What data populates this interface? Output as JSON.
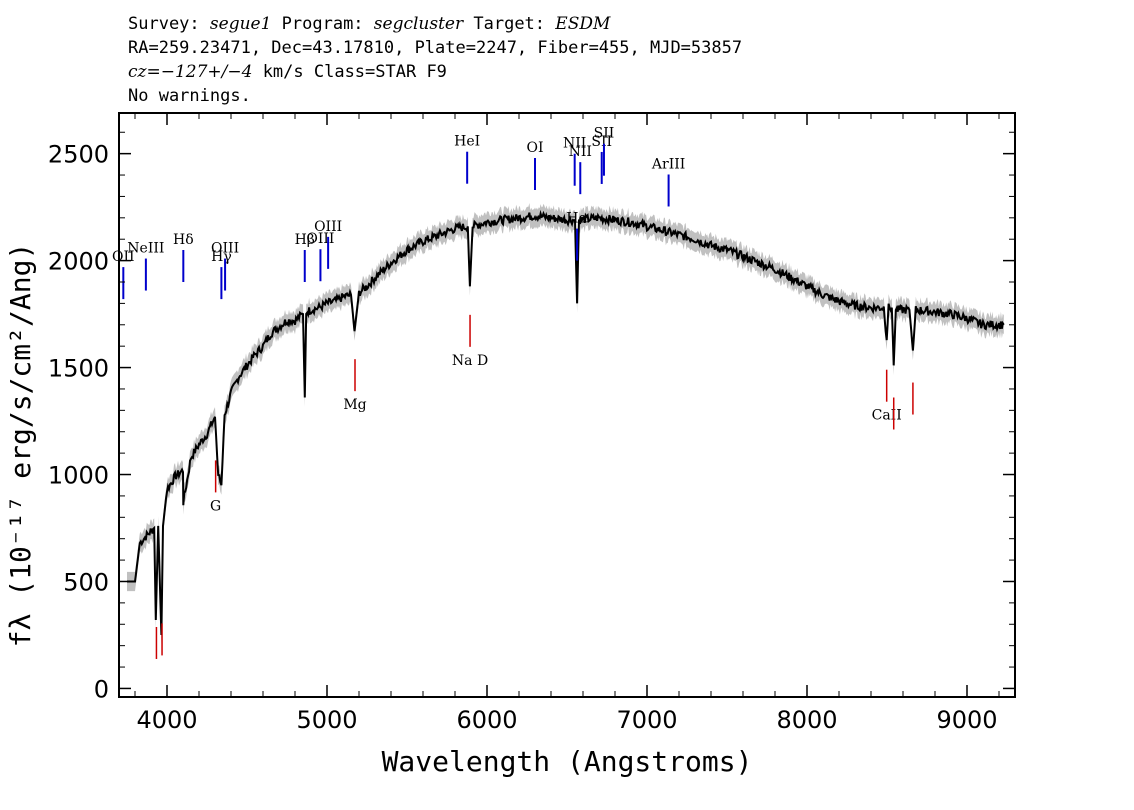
{
  "header": {
    "line1": {
      "survey_label": "Survey:",
      "survey": "segue1",
      "program_label": "Program:",
      "program": "segcluster",
      "target_label": "Target:",
      "target": "ESDM"
    },
    "line2": "RA=259.23471, Dec=43.17810, Plate=2247, Fiber=455, MJD=53857",
    "line3": {
      "cz": "cz=−127+/−4",
      "rest": " km/s Class=STAR F9"
    },
    "line4": "No warnings."
  },
  "chart_data": {
    "type": "line",
    "xlabel": "Wavelength (Angstroms)",
    "ylabel": "f_λ (10^-17 erg/s/cm²/Ang)",
    "ylabel_visible": "fλ (10⁻¹⁷ erg/s/cm²/Ang)",
    "xlim": [
      3700,
      9300
    ],
    "ylim": [
      -40,
      2690
    ],
    "x_ticks": [
      4000,
      5000,
      6000,
      7000,
      8000,
      9000
    ],
    "y_ticks": [
      0,
      500,
      1000,
      1500,
      2000,
      2500
    ],
    "grid": false,
    "series": [
      {
        "points": [
          [
            3750,
            500
          ],
          [
            3800,
            500
          ],
          [
            3830,
            680
          ],
          [
            3880,
            720
          ],
          [
            3920,
            750
          ],
          [
            3930,
            320
          ],
          [
            3945,
            760
          ],
          [
            3965,
            250
          ],
          [
            3975,
            760
          ],
          [
            4000,
            930
          ],
          [
            4050,
            990
          ],
          [
            4100,
            1020
          ],
          [
            4102,
            870
          ],
          [
            4150,
            1080
          ],
          [
            4200,
            1140
          ],
          [
            4250,
            1190
          ],
          [
            4300,
            1270
          ],
          [
            4320,
            1000
          ],
          [
            4340,
            950
          ],
          [
            4360,
            1280
          ],
          [
            4400,
            1380
          ],
          [
            4450,
            1460
          ],
          [
            4500,
            1510
          ],
          [
            4550,
            1560
          ],
          [
            4600,
            1600
          ],
          [
            4650,
            1660
          ],
          [
            4700,
            1690
          ],
          [
            4750,
            1720
          ],
          [
            4800,
            1720
          ],
          [
            4850,
            1750
          ],
          [
            4861,
            1360
          ],
          [
            4870,
            1760
          ],
          [
            4900,
            1770
          ],
          [
            4950,
            1780
          ],
          [
            5000,
            1800
          ],
          [
            5050,
            1810
          ],
          [
            5100,
            1830
          ],
          [
            5150,
            1840
          ],
          [
            5172,
            1670
          ],
          [
            5200,
            1850
          ],
          [
            5250,
            1880
          ],
          [
            5300,
            1920
          ],
          [
            5400,
            1990
          ],
          [
            5500,
            2050
          ],
          [
            5600,
            2090
          ],
          [
            5700,
            2120
          ],
          [
            5800,
            2150
          ],
          [
            5880,
            2160
          ],
          [
            5893,
            1880
          ],
          [
            5910,
            2160
          ],
          [
            6000,
            2180
          ],
          [
            6100,
            2190
          ],
          [
            6200,
            2200
          ],
          [
            6300,
            2210
          ],
          [
            6400,
            2200
          ],
          [
            6500,
            2190
          ],
          [
            6550,
            2190
          ],
          [
            6563,
            1800
          ],
          [
            6575,
            2190
          ],
          [
            6700,
            2200
          ],
          [
            6800,
            2190
          ],
          [
            6900,
            2180
          ],
          [
            7000,
            2160
          ],
          [
            7100,
            2140
          ],
          [
            7200,
            2120
          ],
          [
            7300,
            2100
          ],
          [
            7400,
            2070
          ],
          [
            7500,
            2050
          ],
          [
            7600,
            2020
          ],
          [
            7700,
            1990
          ],
          [
            7800,
            1960
          ],
          [
            7900,
            1920
          ],
          [
            8000,
            1880
          ],
          [
            8100,
            1840
          ],
          [
            8200,
            1810
          ],
          [
            8300,
            1790
          ],
          [
            8400,
            1780
          ],
          [
            8480,
            1780
          ],
          [
            8498,
            1640
          ],
          [
            8510,
            1780
          ],
          [
            8530,
            1780
          ],
          [
            8542,
            1510
          ],
          [
            8555,
            1770
          ],
          [
            8640,
            1770
          ],
          [
            8662,
            1580
          ],
          [
            8680,
            1770
          ],
          [
            8800,
            1760
          ],
          [
            8900,
            1750
          ],
          [
            9000,
            1730
          ],
          [
            9100,
            1700
          ],
          [
            9200,
            1700
          ],
          [
            9230,
            1700
          ]
        ]
      }
    ],
    "emission_lines": [
      {
        "label": "OII",
        "x": 3727
      },
      {
        "label": "NeIII",
        "x": 3868
      },
      {
        "label": "Hδ",
        "x": 4102
      },
      {
        "label": "Hγ",
        "x": 4340
      },
      {
        "label": "OIII",
        "x": 4363
      },
      {
        "label": "Hβ",
        "x": 4861
      },
      {
        "label": "OIII",
        "x": 4959
      },
      {
        "label": "OIII",
        "x": 5007
      },
      {
        "label": "HeI",
        "x": 5876
      },
      {
        "label": "OI",
        "x": 6300
      },
      {
        "label": "NII",
        "x": 6548
      },
      {
        "label": "Hα",
        "x": 6563
      },
      {
        "label": "NII",
        "x": 6583
      },
      {
        "label": "SII",
        "x": 6717
      },
      {
        "label": "SII",
        "x": 6731
      },
      {
        "label": "ArIII",
        "x": 7135
      }
    ],
    "absorption_lines": [
      {
        "label": "",
        "x": 3934
      },
      {
        "label": "",
        "x": 3969
      },
      {
        "label": "G",
        "x": 4304
      },
      {
        "label": "Mg",
        "x": 5175
      },
      {
        "label": "Na D",
        "x": 5894
      },
      {
        "label": "CaII",
        "x": 8498
      },
      {
        "label": "",
        "x": 8542
      },
      {
        "label": "",
        "x": 8662
      }
    ],
    "colors": {
      "spectrum": "#000000",
      "error_band": "#c0c0c0",
      "emission": "#0000cc",
      "absorption": "#cc0000"
    }
  }
}
